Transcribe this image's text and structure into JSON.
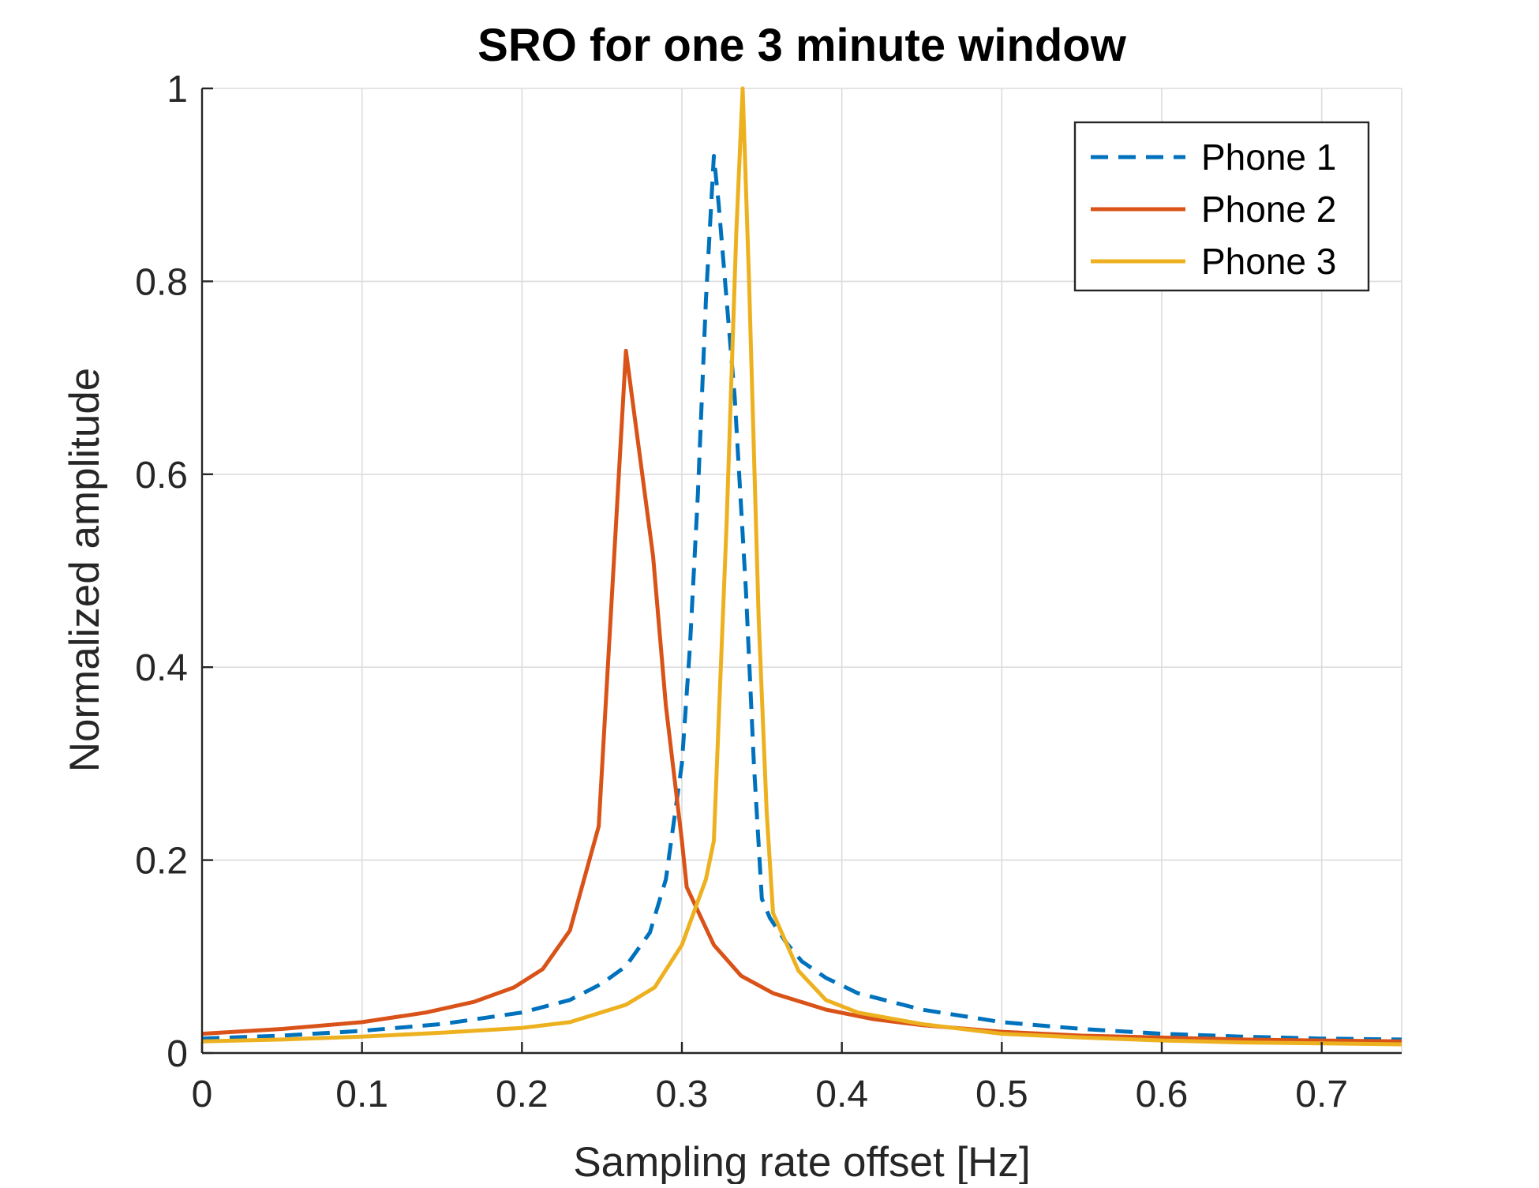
{
  "chart_data": {
    "type": "line",
    "title": "SRO for one 3 minute window",
    "xlabel": "Sampling rate offset [Hz]",
    "ylabel": "Normalized amplitude",
    "xlim": [
      0,
      0.75
    ],
    "ylim": [
      0,
      1
    ],
    "xticks": [
      0,
      0.1,
      0.2,
      0.3,
      0.4,
      0.5,
      0.6,
      0.7
    ],
    "xtick_labels": [
      "0",
      "0.1",
      "0.2",
      "0.3",
      "0.4",
      "0.5",
      "0.6",
      "0.7"
    ],
    "yticks": [
      0,
      0.2,
      0.4,
      0.6,
      0.8,
      1
    ],
    "ytick_labels": [
      "0",
      "0.2",
      "0.4",
      "0.6",
      "0.8",
      "1"
    ],
    "grid": true,
    "legend_position": "top-right",
    "series": [
      {
        "name": "Phone 1",
        "color": "#0072BD",
        "style": "dashed",
        "x": [
          0,
          0.05,
          0.1,
          0.15,
          0.2,
          0.23,
          0.25,
          0.265,
          0.28,
          0.29,
          0.3,
          0.305,
          0.31,
          0.315,
          0.32,
          0.323,
          0.327,
          0.333,
          0.34,
          0.345,
          0.35,
          0.355,
          0.365,
          0.375,
          0.39,
          0.41,
          0.45,
          0.5,
          0.55,
          0.6,
          0.65,
          0.7,
          0.75
        ],
        "y": [
          0.015,
          0.018,
          0.023,
          0.03,
          0.042,
          0.055,
          0.072,
          0.09,
          0.125,
          0.18,
          0.3,
          0.42,
          0.58,
          0.78,
          0.93,
          0.88,
          0.8,
          0.68,
          0.48,
          0.3,
          0.16,
          0.14,
          0.115,
          0.095,
          0.078,
          0.062,
          0.045,
          0.032,
          0.025,
          0.02,
          0.017,
          0.015,
          0.014
        ]
      },
      {
        "name": "Phone 2",
        "color": "#D95319",
        "style": "solid",
        "x": [
          0,
          0.05,
          0.1,
          0.14,
          0.17,
          0.195,
          0.213,
          0.23,
          0.248,
          0.265,
          0.282,
          0.29,
          0.3,
          0.303,
          0.32,
          0.337,
          0.357,
          0.39,
          0.42,
          0.45,
          0.5,
          0.55,
          0.6,
          0.65,
          0.7,
          0.75
        ],
        "y": [
          0.02,
          0.025,
          0.032,
          0.042,
          0.053,
          0.068,
          0.087,
          0.127,
          0.235,
          0.728,
          0.515,
          0.36,
          0.22,
          0.172,
          0.112,
          0.08,
          0.062,
          0.045,
          0.035,
          0.029,
          0.022,
          0.018,
          0.016,
          0.014,
          0.013,
          0.012
        ]
      },
      {
        "name": "Phone 3",
        "color": "#EDB120",
        "style": "solid",
        "x": [
          0,
          0.05,
          0.1,
          0.15,
          0.2,
          0.23,
          0.265,
          0.283,
          0.3,
          0.315,
          0.32,
          0.328,
          0.334,
          0.338,
          0.342,
          0.348,
          0.353,
          0.357,
          0.373,
          0.39,
          0.41,
          0.45,
          0.5,
          0.55,
          0.6,
          0.65,
          0.7,
          0.75
        ],
        "y": [
          0.012,
          0.014,
          0.017,
          0.021,
          0.026,
          0.032,
          0.05,
          0.068,
          0.112,
          0.18,
          0.22,
          0.55,
          0.85,
          1.0,
          0.8,
          0.45,
          0.25,
          0.145,
          0.085,
          0.055,
          0.042,
          0.03,
          0.02,
          0.016,
          0.013,
          0.011,
          0.01,
          0.009
        ]
      }
    ]
  }
}
